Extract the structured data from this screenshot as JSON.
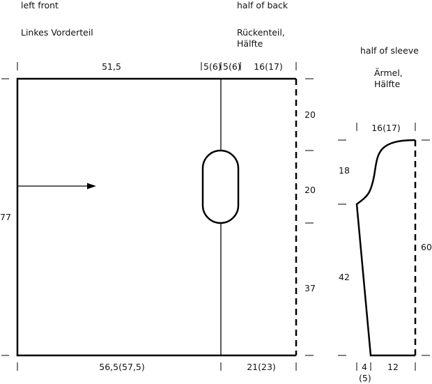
{
  "labels": {
    "front_en": "left front",
    "front_de": "Linkes Vorderteil",
    "back_en": "half of back",
    "back_de_1": "Rückenteil,",
    "back_de_2": "Hälfte",
    "sleeve_en": "half of sleeve",
    "sleeve_de_1": "Ärmel,",
    "sleeve_de_2": "Hälfte"
  },
  "body_dims": {
    "top_front": "51,5",
    "top_neck": "5(6)",
    "top_neck2": "5(6)",
    "top_back": "16(17)",
    "height": "77",
    "right_1": "20",
    "right_2": "20",
    "right_3": "37",
    "bottom_front": "56,5(57,5)",
    "bottom_back": "21(23)"
  },
  "sleeve_dims": {
    "top": "16(17)",
    "cap": "18",
    "lower": "42",
    "total": "60",
    "bottom_left": "4",
    "bottom_left_alt": "(5)",
    "bottom_right": "12"
  }
}
